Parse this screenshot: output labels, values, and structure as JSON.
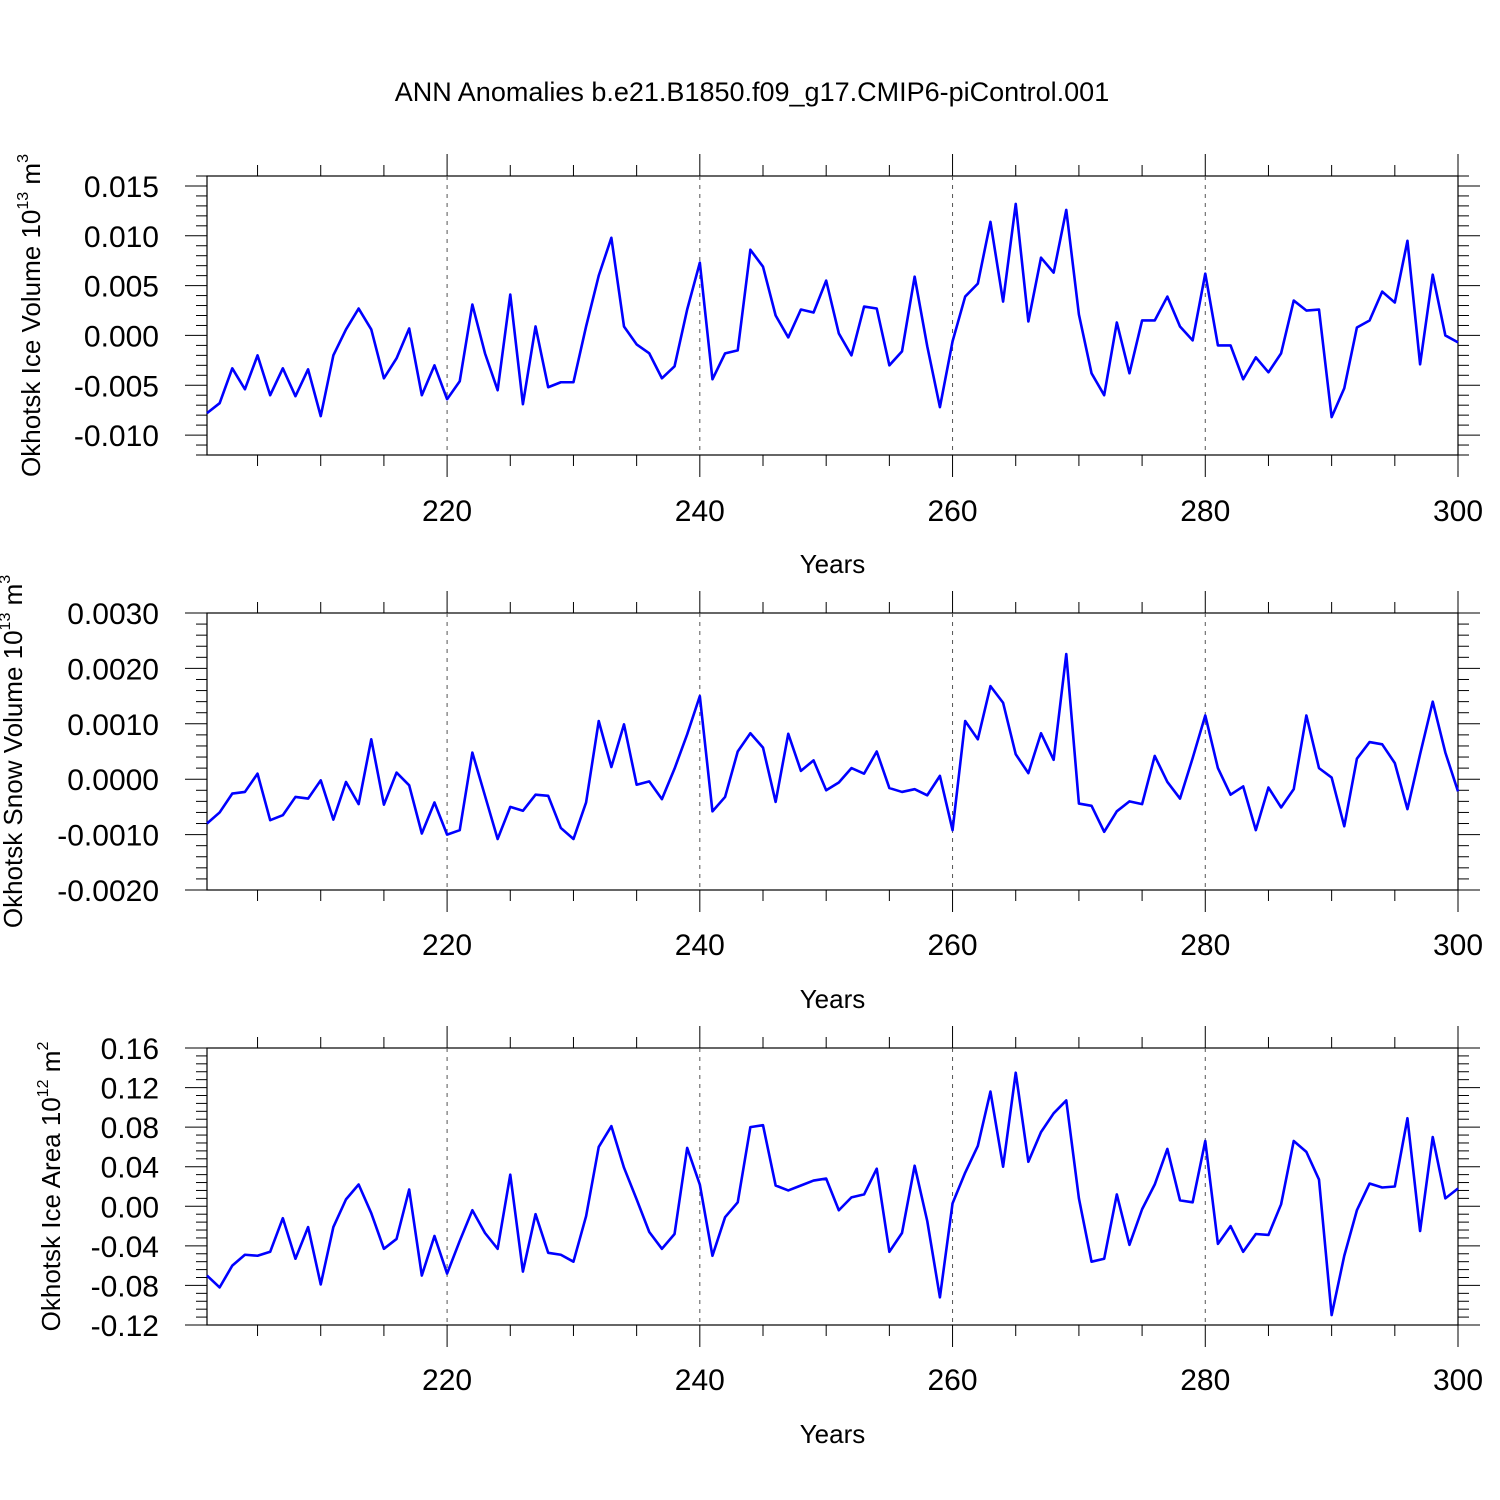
{
  "title": "ANN Anomalies b.e21.B1850.f09_g17.CMIP6-piControl.001",
  "line_color": "#0000ff",
  "chart_data": [
    {
      "type": "line",
      "ylabel_main": "Okhotsk Ice Volume 10",
      "ylabel_sup": "13",
      "ylabel_unit": "m",
      "ylabel_unit_sup": "3",
      "xlabel": "Years",
      "xlim": [
        201,
        300
      ],
      "ylim": [
        -0.012,
        0.016
      ],
      "x_ticks": [
        220,
        240,
        260,
        280,
        300
      ],
      "x_tick_labels": [
        "220",
        "240",
        "260",
        "280",
        "300"
      ],
      "y_ticks": [
        -0.01,
        -0.005,
        0.0,
        0.005,
        0.01,
        0.015
      ],
      "y_tick_labels": [
        "-0.010",
        "-0.005",
        "0.000",
        "0.005",
        "0.010",
        "0.015"
      ],
      "grid_x": [
        220,
        240,
        260,
        280
      ],
      "x": [
        201,
        202,
        203,
        204,
        205,
        206,
        207,
        208,
        209,
        210,
        211,
        212,
        213,
        214,
        215,
        216,
        217,
        218,
        219,
        220,
        221,
        222,
        223,
        224,
        225,
        226,
        227,
        228,
        229,
        230,
        231,
        232,
        233,
        234,
        235,
        236,
        237,
        238,
        239,
        240,
        241,
        242,
        243,
        244,
        245,
        246,
        247,
        248,
        249,
        250,
        251,
        252,
        253,
        254,
        255,
        256,
        257,
        258,
        259,
        260,
        261,
        262,
        263,
        264,
        265,
        266,
        267,
        268,
        269,
        270,
        271,
        272,
        273,
        274,
        275,
        276,
        277,
        278,
        279,
        280,
        281,
        282,
        283,
        284,
        285,
        286,
        287,
        288,
        289,
        290,
        291,
        292,
        293,
        294,
        295,
        296,
        297,
        298,
        299,
        300
      ],
      "y": [
        -0.0078,
        -0.0068,
        -0.0033,
        -0.0054,
        -0.002,
        -0.006,
        -0.0033,
        -0.0061,
        -0.0034,
        -0.0081,
        -0.002,
        0.0006,
        0.0027,
        0.0006,
        -0.0043,
        -0.0023,
        0.0007,
        -0.006,
        -0.003,
        -0.0064,
        -0.0046,
        0.0031,
        -0.0018,
        -0.0055,
        0.0041,
        -0.0069,
        0.0009,
        -0.0052,
        -0.0047,
        -0.0047,
        0.0009,
        0.006,
        0.0098,
        0.0009,
        -0.0009,
        -0.0018,
        -0.0043,
        -0.0031,
        0.0026,
        0.0073,
        -0.0044,
        -0.0018,
        -0.0015,
        0.0086,
        0.0069,
        0.002,
        -0.0002,
        0.0026,
        0.0023,
        0.0055,
        0.0002,
        -0.002,
        0.0029,
        0.0027,
        -0.003,
        -0.0016,
        0.0059,
        -0.0011,
        -0.0072,
        -0.0006,
        0.0039,
        0.0052,
        0.0114,
        0.0034,
        0.0132,
        0.0014,
        0.0078,
        0.0063,
        0.0126,
        0.0021,
        -0.0038,
        -0.006,
        0.0013,
        -0.0038,
        0.0015,
        0.0015,
        0.0039,
        0.0009,
        -0.0005,
        0.0062,
        -0.001,
        -0.001,
        -0.0044,
        -0.0022,
        -0.0037,
        -0.0018,
        0.0035,
        0.0025,
        0.0026,
        -0.0082,
        -0.0053,
        0.0008,
        0.0015,
        0.0044,
        0.0033,
        0.0095,
        -0.0029,
        0.0061,
        0.0,
        -0.0007
      ]
    },
    {
      "type": "line",
      "ylabel_main": "Okhotsk Snow Volume 10",
      "ylabel_sup": "13",
      "ylabel_unit": "m",
      "ylabel_unit_sup": "3",
      "xlabel": "Years",
      "xlim": [
        201,
        300
      ],
      "ylim": [
        -0.002,
        0.003
      ],
      "x_ticks": [
        220,
        240,
        260,
        280,
        300
      ],
      "x_tick_labels": [
        "220",
        "240",
        "260",
        "280",
        "300"
      ],
      "y_ticks": [
        -0.002,
        -0.001,
        0.0,
        0.001,
        0.002,
        0.003
      ],
      "y_tick_labels": [
        "-0.0020",
        "-0.0010",
        "0.0000",
        "0.0010",
        "0.0020",
        "0.0030"
      ],
      "grid_x": [
        220,
        240,
        260,
        280
      ],
      "x": [
        201,
        202,
        203,
        204,
        205,
        206,
        207,
        208,
        209,
        210,
        211,
        212,
        213,
        214,
        215,
        216,
        217,
        218,
        219,
        220,
        221,
        222,
        223,
        224,
        225,
        226,
        227,
        228,
        229,
        230,
        231,
        232,
        233,
        234,
        235,
        236,
        237,
        238,
        239,
        240,
        241,
        242,
        243,
        244,
        245,
        246,
        247,
        248,
        249,
        250,
        251,
        252,
        253,
        254,
        255,
        256,
        257,
        258,
        259,
        260,
        261,
        262,
        263,
        264,
        265,
        266,
        267,
        268,
        269,
        270,
        271,
        272,
        273,
        274,
        275,
        276,
        277,
        278,
        279,
        280,
        281,
        282,
        283,
        284,
        285,
        286,
        287,
        288,
        289,
        290,
        291,
        292,
        293,
        294,
        295,
        296,
        297,
        298,
        299,
        300
      ],
      "y": [
        -0.0008,
        -0.0006,
        -0.00026,
        -0.00023,
        0.0001,
        -0.00074,
        -0.00065,
        -0.00032,
        -0.00035,
        -2e-05,
        -0.00073,
        -5e-05,
        -0.00045,
        0.00072,
        -0.00046,
        0.00012,
        -0.00011,
        -0.00098,
        -0.00042,
        -0.001,
        -0.00092,
        0.00048,
        -0.0003,
        -0.00108,
        -0.0005,
        -0.00057,
        -0.00028,
        -0.0003,
        -0.00088,
        -0.00108,
        -0.00042,
        0.00105,
        0.00022,
        0.00099,
        -0.0001,
        -4e-05,
        -0.00036,
        0.00019,
        0.00081,
        0.0015,
        -0.00058,
        -0.00032,
        0.0005,
        0.00083,
        0.00057,
        -0.00041,
        0.00082,
        0.00015,
        0.00034,
        -0.0002,
        -6e-05,
        0.0002,
        0.0001,
        0.0005,
        -0.00016,
        -0.00023,
        -0.00018,
        -0.00029,
        6e-05,
        -0.00092,
        0.00105,
        0.00072,
        0.00168,
        0.00138,
        0.00045,
        0.00011,
        0.00083,
        0.00035,
        0.00226,
        -0.00044,
        -0.00048,
        -0.00095,
        -0.00058,
        -0.0004,
        -0.00045,
        0.00042,
        -5e-05,
        -0.00035,
        0.00038,
        0.00115,
        0.0002,
        -0.00028,
        -0.00013,
        -0.00092,
        -0.00015,
        -0.00051,
        -0.00018,
        0.00115,
        0.0002,
        3e-05,
        -0.00085,
        0.00037,
        0.00067,
        0.00063,
        0.00029,
        -0.00054,
        0.00045,
        0.0014,
        0.00048,
        -0.00022
      ]
    },
    {
      "type": "line",
      "ylabel_main": "Okhotsk Ice Area 10",
      "ylabel_sup": "12",
      "ylabel_unit": "m",
      "ylabel_unit_sup": "2",
      "xlabel": "Years",
      "xlim": [
        201,
        300
      ],
      "ylim": [
        -0.12,
        0.16
      ],
      "x_ticks": [
        220,
        240,
        260,
        280,
        300
      ],
      "x_tick_labels": [
        "220",
        "240",
        "260",
        "280",
        "300"
      ],
      "y_ticks": [
        -0.12,
        -0.08,
        -0.04,
        0.0,
        0.04,
        0.08,
        0.12,
        0.16
      ],
      "y_tick_labels": [
        "-0.12",
        "-0.08",
        "-0.04",
        "0.00",
        "0.04",
        "0.08",
        "0.12",
        "0.16"
      ],
      "grid_x": [
        220,
        240,
        260,
        280
      ],
      "x": [
        201,
        202,
        203,
        204,
        205,
        206,
        207,
        208,
        209,
        210,
        211,
        212,
        213,
        214,
        215,
        216,
        217,
        218,
        219,
        220,
        221,
        222,
        223,
        224,
        225,
        226,
        227,
        228,
        229,
        230,
        231,
        232,
        233,
        234,
        235,
        236,
        237,
        238,
        239,
        240,
        241,
        242,
        243,
        244,
        245,
        246,
        247,
        248,
        249,
        250,
        251,
        252,
        253,
        254,
        255,
        256,
        257,
        258,
        259,
        260,
        261,
        262,
        263,
        264,
        265,
        266,
        267,
        268,
        269,
        270,
        271,
        272,
        273,
        274,
        275,
        276,
        277,
        278,
        279,
        280,
        281,
        282,
        283,
        284,
        285,
        286,
        287,
        288,
        289,
        290,
        291,
        292,
        293,
        294,
        295,
        296,
        297,
        298,
        299,
        300
      ],
      "y": [
        -0.07,
        -0.082,
        -0.06,
        -0.049,
        -0.05,
        -0.046,
        -0.012,
        -0.053,
        -0.021,
        -0.079,
        -0.021,
        0.007,
        0.022,
        -0.007,
        -0.043,
        -0.033,
        0.017,
        -0.07,
        -0.03,
        -0.068,
        -0.035,
        -0.004,
        -0.027,
        -0.043,
        0.032,
        -0.066,
        -0.008,
        -0.047,
        -0.049,
        -0.056,
        -0.01,
        0.06,
        0.081,
        0.039,
        0.007,
        -0.026,
        -0.043,
        -0.028,
        0.059,
        0.022,
        -0.05,
        -0.011,
        0.004,
        0.08,
        0.082,
        0.021,
        0.016,
        0.021,
        0.026,
        0.028,
        -0.004,
        0.009,
        0.012,
        0.038,
        -0.046,
        -0.027,
        0.041,
        -0.015,
        -0.092,
        0.003,
        0.034,
        0.061,
        0.116,
        0.04,
        0.135,
        0.045,
        0.075,
        0.094,
        0.107,
        0.008,
        -0.056,
        -0.053,
        0.012,
        -0.039,
        -0.003,
        0.022,
        0.058,
        0.006,
        0.004,
        0.066,
        -0.038,
        -0.02,
        -0.046,
        -0.028,
        -0.029,
        0.002,
        0.066,
        0.055,
        0.027,
        -0.11,
        -0.05,
        -0.004,
        0.023,
        0.019,
        0.02,
        0.089,
        -0.025,
        0.07,
        0.008,
        0.018
      ]
    }
  ]
}
